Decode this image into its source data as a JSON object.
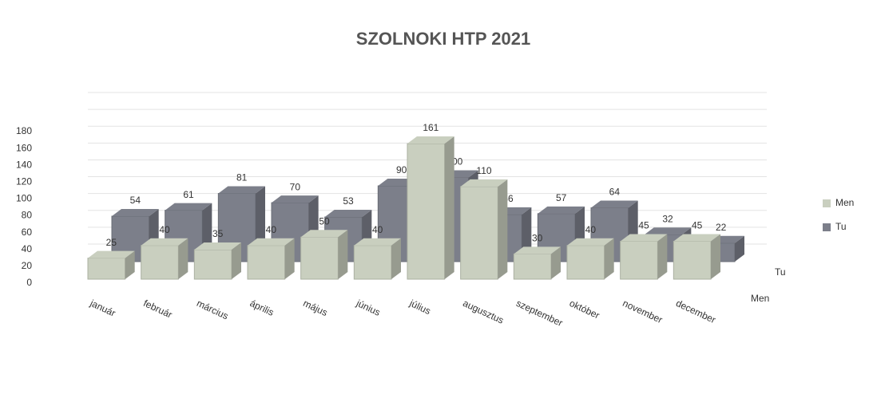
{
  "chart_data": {
    "type": "bar3d",
    "title": "SZOLNOKI HTP 2021",
    "categories": [
      "január",
      "február",
      "március",
      "április",
      "május",
      "június",
      "július",
      "augusztus",
      "szeptember",
      "október",
      "november",
      "december"
    ],
    "series": [
      {
        "name": "Men",
        "color": "#c9cfbf",
        "values": [
          25,
          40,
          35,
          40,
          50,
          40,
          161,
          110,
          30,
          40,
          45,
          45
        ]
      },
      {
        "name": "Tu",
        "color": "#7c7f8a",
        "values": [
          54,
          61,
          81,
          70,
          53,
          90,
          100,
          56,
          57,
          64,
          32,
          22
        ]
      }
    ],
    "ylim": [
      0,
      180
    ],
    "yticks": [
      0,
      20,
      40,
      60,
      80,
      100,
      120,
      140,
      160,
      180
    ],
    "grid": true
  }
}
